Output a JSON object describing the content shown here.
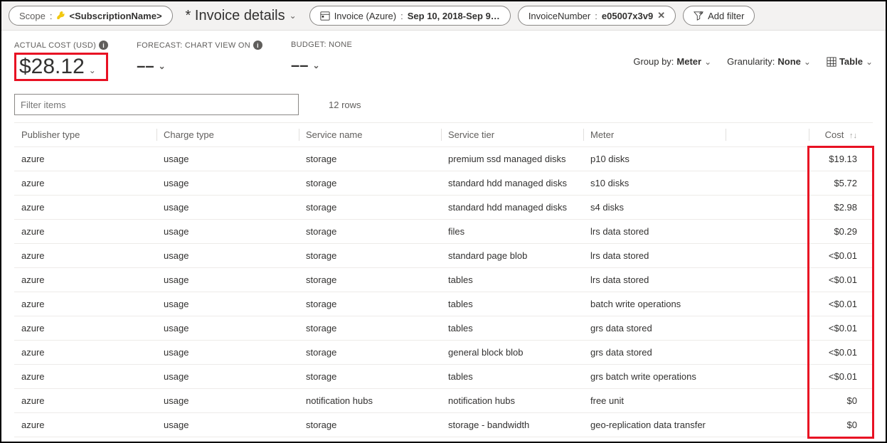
{
  "filters": {
    "scope": {
      "label": "Scope",
      "value": "<SubscriptionName>"
    },
    "title": "* Invoice details",
    "date_pill": {
      "label": "Invoice (Azure)",
      "value": "Sep 10, 2018-Sep 9…"
    },
    "invoice_pill": {
      "label": "InvoiceNumber",
      "value": "e05007x3v9"
    },
    "add_filter": "Add filter"
  },
  "summary": {
    "actual_cost_label": "ACTUAL COST (USD)",
    "actual_cost_value": "$28.12",
    "forecast_label": "FORECAST: CHART VIEW ON",
    "forecast_value": "––",
    "budget_label": "BUDGET: NONE",
    "budget_value": "––"
  },
  "controls": {
    "group_by_label": "Group by:",
    "group_by_value": "Meter",
    "granularity_label": "Granularity:",
    "granularity_value": "None",
    "view_label": "Table"
  },
  "filter_input_placeholder": "Filter items",
  "row_count_text": "12 rows",
  "table": {
    "columns": [
      "Publisher type",
      "Charge type",
      "Service name",
      "Service tier",
      "Meter",
      "Cost"
    ],
    "rows": [
      [
        "azure",
        "usage",
        "storage",
        "premium ssd managed disks",
        "p10 disks",
        "$19.13"
      ],
      [
        "azure",
        "usage",
        "storage",
        "standard hdd managed disks",
        "s10 disks",
        "$5.72"
      ],
      [
        "azure",
        "usage",
        "storage",
        "standard hdd managed disks",
        "s4 disks",
        "$2.98"
      ],
      [
        "azure",
        "usage",
        "storage",
        "files",
        "lrs data stored",
        "$0.29"
      ],
      [
        "azure",
        "usage",
        "storage",
        "standard page blob",
        "lrs data stored",
        "<$0.01"
      ],
      [
        "azure",
        "usage",
        "storage",
        "tables",
        "lrs data stored",
        "<$0.01"
      ],
      [
        "azure",
        "usage",
        "storage",
        "tables",
        "batch write operations",
        "<$0.01"
      ],
      [
        "azure",
        "usage",
        "storage",
        "tables",
        "grs data stored",
        "<$0.01"
      ],
      [
        "azure",
        "usage",
        "storage",
        "general block blob",
        "grs data stored",
        "<$0.01"
      ],
      [
        "azure",
        "usage",
        "storage",
        "tables",
        "grs batch write operations",
        "<$0.01"
      ],
      [
        "azure",
        "usage",
        "notification hubs",
        "notification hubs",
        "free unit",
        "$0"
      ],
      [
        "azure",
        "usage",
        "storage",
        "storage - bandwidth",
        "geo-replication data transfer",
        "$0"
      ]
    ]
  },
  "highlight": {
    "color": "#e81123"
  }
}
